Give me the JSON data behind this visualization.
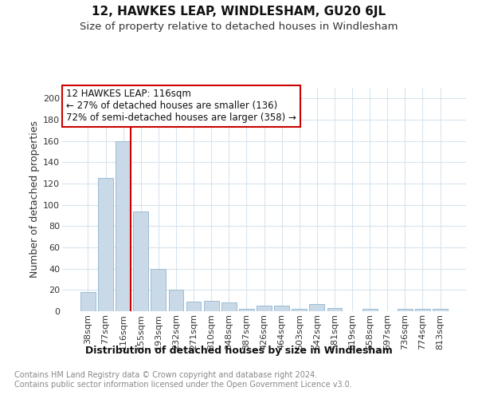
{
  "title": "12, HAWKES LEAP, WINDLESHAM, GU20 6JL",
  "subtitle": "Size of property relative to detached houses in Windlesham",
  "xlabel": "Distribution of detached houses by size in Windlesham",
  "ylabel": "Number of detached properties",
  "categories": [
    "38sqm",
    "77sqm",
    "116sqm",
    "155sqm",
    "193sqm",
    "232sqm",
    "271sqm",
    "310sqm",
    "348sqm",
    "387sqm",
    "426sqm",
    "464sqm",
    "503sqm",
    "542sqm",
    "581sqm",
    "619sqm",
    "658sqm",
    "697sqm",
    "736sqm",
    "774sqm",
    "813sqm"
  ],
  "values": [
    18,
    125,
    160,
    94,
    40,
    20,
    9,
    10,
    8,
    2,
    5,
    5,
    2,
    7,
    3,
    0,
    2,
    0,
    2,
    2,
    2
  ],
  "bar_color": "#c9d9e8",
  "bar_edge_color": "#9bbdd4",
  "highlight_bar_index": 2,
  "highlight_line_color": "#cc0000",
  "annotation_text": "12 HAWKES LEAP: 116sqm\n← 27% of detached houses are smaller (136)\n72% of semi-detached houses are larger (358) →",
  "annotation_box_color": "#ffffff",
  "annotation_box_edge": "#cc0000",
  "footnote": "Contains HM Land Registry data © Crown copyright and database right 2024.\nContains public sector information licensed under the Open Government Licence v3.0.",
  "ylim": [
    0,
    210
  ],
  "yticks": [
    0,
    20,
    40,
    60,
    80,
    100,
    120,
    140,
    160,
    180,
    200
  ],
  "grid_color": "#d8e4ee",
  "background_color": "#ffffff",
  "title_fontsize": 11,
  "subtitle_fontsize": 9.5,
  "xlabel_fontsize": 9,
  "ylabel_fontsize": 9,
  "tick_fontsize": 8,
  "annotation_fontsize": 8.5,
  "footnote_fontsize": 7
}
